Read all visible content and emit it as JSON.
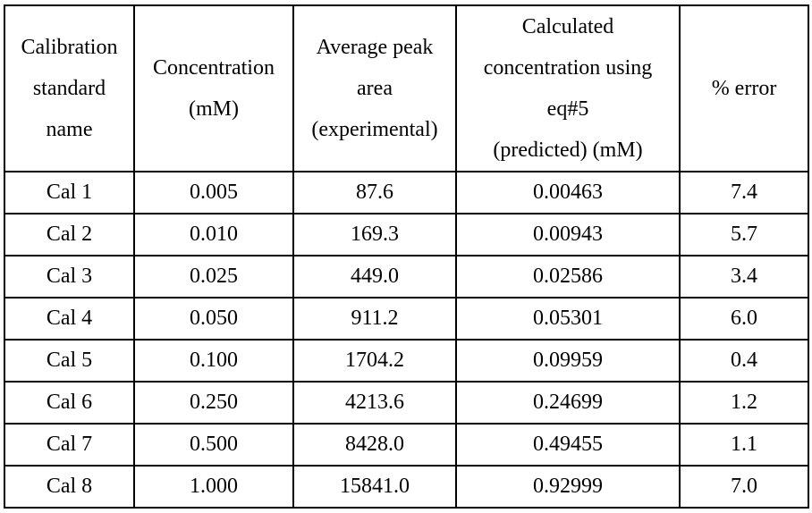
{
  "table": {
    "headers": [
      [
        "Calibration",
        "standard",
        "name"
      ],
      [
        "Concentration",
        "(mM)"
      ],
      [
        "Average peak",
        "area",
        "(experimental)"
      ],
      [
        "Calculated",
        "concentration using",
        "eq#5",
        "(predicted) (mM)"
      ],
      [
        "% error"
      ]
    ],
    "rows": [
      [
        "Cal 1",
        "0.005",
        "87.6",
        "0.00463",
        "7.4"
      ],
      [
        "Cal 2",
        "0.010",
        "169.3",
        "0.00943",
        "5.7"
      ],
      [
        "Cal 3",
        "0.025",
        "449.0",
        "0.02586",
        "3.4"
      ],
      [
        "Cal 4",
        "0.050",
        "911.2",
        "0.05301",
        "6.0"
      ],
      [
        "Cal 5",
        "0.100",
        "1704.2",
        "0.09959",
        "0.4"
      ],
      [
        "Cal 6",
        "0.250",
        "4213.6",
        "0.24699",
        "1.2"
      ],
      [
        "Cal 7",
        "0.500",
        "8428.0",
        "0.49455",
        "1.1"
      ],
      [
        "Cal 8",
        "1.000",
        "15841.0",
        "0.92999",
        "7.0"
      ]
    ]
  }
}
